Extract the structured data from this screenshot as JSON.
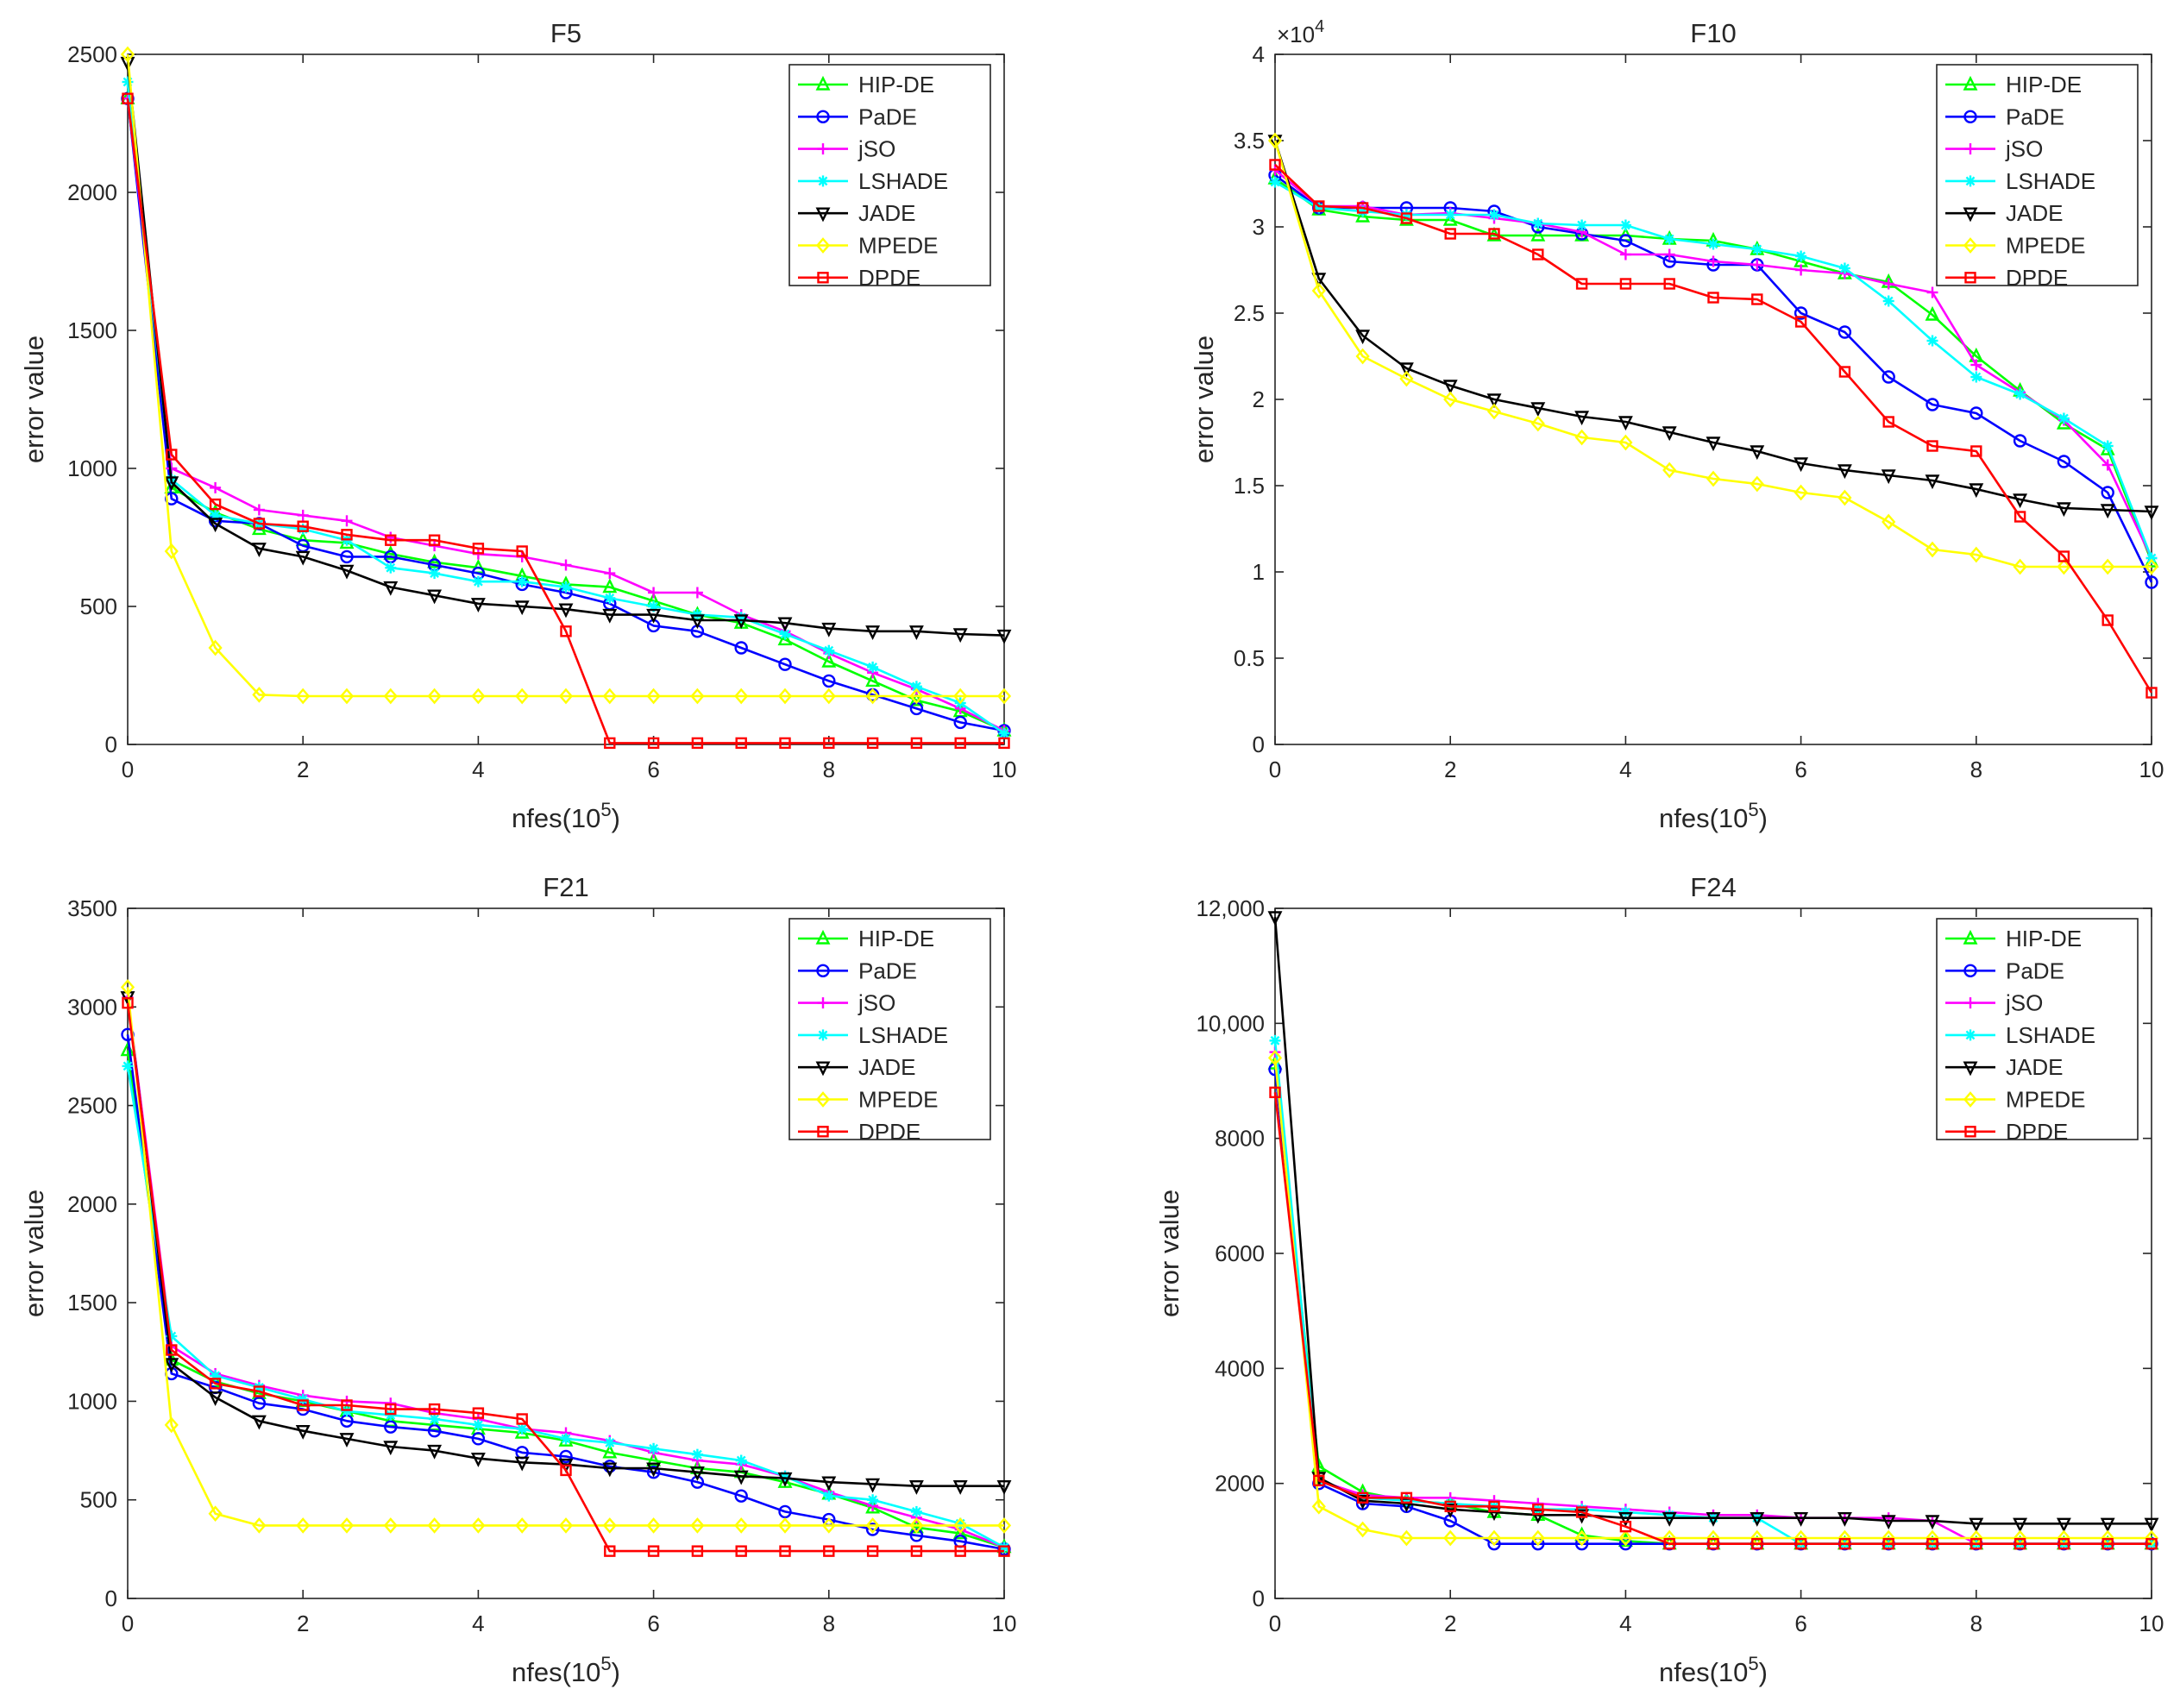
{
  "chart_data": [
    {
      "type": "line",
      "title": "F5",
      "xlabel": "nfes(10",
      "xlabel_exp": "5",
      "xlabel_end": ")",
      "ylabel": "error value",
      "xlim": [
        0,
        10
      ],
      "ylim": [
        0,
        2500
      ],
      "xticks": [
        0,
        2,
        4,
        6,
        8,
        10
      ],
      "yticks": [
        0,
        500,
        1000,
        1500,
        2000,
        2500
      ],
      "ytick_labels": [
        "0",
        "500",
        "1000",
        "1500",
        "2000",
        "2500"
      ],
      "y_multiplier": "",
      "legend_position": "top-right",
      "x": [
        0,
        0.5,
        1,
        1.5,
        2,
        2.5,
        3,
        3.5,
        4,
        4.5,
        5,
        5.5,
        6,
        6.5,
        7,
        7.5,
        8,
        8.5,
        9,
        9.5,
        10
      ],
      "series": [
        {
          "name": "HIP-DE",
          "color": "#00ff00",
          "marker": "triangle-up",
          "values": [
            2340,
            930,
            840,
            780,
            740,
            730,
            690,
            660,
            640,
            610,
            580,
            570,
            520,
            470,
            440,
            380,
            300,
            230,
            160,
            120,
            50
          ]
        },
        {
          "name": "PaDE",
          "color": "#0000ff",
          "marker": "circle",
          "values": [
            2340,
            890,
            810,
            800,
            720,
            680,
            680,
            650,
            620,
            580,
            550,
            510,
            430,
            410,
            350,
            290,
            230,
            180,
            130,
            80,
            50
          ]
        },
        {
          "name": "jSO",
          "color": "#ff00ff",
          "marker": "plus",
          "values": [
            2340,
            1000,
            930,
            850,
            830,
            810,
            750,
            720,
            690,
            680,
            650,
            620,
            550,
            550,
            470,
            410,
            330,
            260,
            200,
            130,
            50
          ]
        },
        {
          "name": "LSHADE",
          "color": "#00ffff",
          "marker": "asterisk",
          "values": [
            2400,
            960,
            830,
            800,
            780,
            740,
            640,
            620,
            590,
            590,
            570,
            530,
            500,
            470,
            460,
            400,
            340,
            280,
            210,
            150,
            40
          ]
        },
        {
          "name": "JADE",
          "color": "#000000",
          "marker": "triangle-down",
          "values": [
            2470,
            950,
            800,
            710,
            680,
            630,
            570,
            540,
            510,
            500,
            490,
            470,
            470,
            450,
            450,
            440,
            420,
            410,
            410,
            400,
            395
          ]
        },
        {
          "name": "MPEDE",
          "color": "#ffff00",
          "marker": "diamond",
          "values": [
            2500,
            700,
            350,
            180,
            175,
            175,
            175,
            175,
            175,
            175,
            175,
            175,
            175,
            175,
            175,
            175,
            175,
            175,
            175,
            175,
            175
          ]
        },
        {
          "name": "DPDE",
          "color": "#ff0000",
          "marker": "square",
          "values": [
            2340,
            1050,
            870,
            800,
            790,
            760,
            740,
            740,
            710,
            700,
            410,
            5,
            5,
            5,
            5,
            5,
            5,
            5,
            5,
            5,
            5
          ]
        }
      ]
    },
    {
      "type": "line",
      "title": "F10",
      "xlabel": "nfes(10",
      "xlabel_exp": "5",
      "xlabel_end": ")",
      "ylabel": "error value",
      "xlim": [
        0,
        10
      ],
      "ylim": [
        0,
        40000
      ],
      "xticks": [
        0,
        2,
        4,
        6,
        8,
        10
      ],
      "yticks": [
        0,
        5000,
        10000,
        15000,
        20000,
        25000,
        30000,
        35000,
        40000
      ],
      "ytick_labels": [
        "0",
        "0.5",
        "1",
        "1.5",
        "2",
        "2.5",
        "3",
        "3.5",
        "4"
      ],
      "y_multiplier": "×10",
      "y_multiplier_exp": "4",
      "legend_position": "top-right",
      "x": [
        0,
        0.5,
        1,
        1.5,
        2,
        2.5,
        3,
        3.5,
        4,
        4.5,
        5,
        5.5,
        6,
        6.5,
        7,
        7.5,
        8,
        8.5,
        9,
        9.5,
        10
      ],
      "series": [
        {
          "name": "HIP-DE",
          "color": "#00ff00",
          "marker": "triangle-up",
          "values": [
            32800,
            31000,
            30600,
            30400,
            30400,
            29500,
            29500,
            29500,
            29500,
            29300,
            29200,
            28700,
            28000,
            27300,
            26800,
            24900,
            22500,
            20500,
            18600,
            17100,
            10600
          ]
        },
        {
          "name": "PaDE",
          "color": "#0000ff",
          "marker": "circle",
          "values": [
            33000,
            31100,
            31100,
            31100,
            31100,
            30900,
            30000,
            29600,
            29200,
            28000,
            27800,
            27800,
            25000,
            23900,
            21300,
            19700,
            19200,
            17600,
            16400,
            14600,
            9400
          ]
        },
        {
          "name": "jSO",
          "color": "#ff00ff",
          "marker": "plus",
          "values": [
            33300,
            31200,
            31200,
            30700,
            30800,
            30500,
            30200,
            29700,
            28400,
            28400,
            28000,
            27800,
            27500,
            27300,
            26700,
            26200,
            22000,
            20400,
            18800,
            16200,
            10800
          ]
        },
        {
          "name": "LSHADE",
          "color": "#00ffff",
          "marker": "asterisk",
          "values": [
            32600,
            31100,
            30900,
            30700,
            30700,
            30700,
            30200,
            30100,
            30100,
            29300,
            29000,
            28700,
            28300,
            27600,
            25700,
            23400,
            21300,
            20300,
            18900,
            17300,
            10800
          ]
        },
        {
          "name": "JADE",
          "color": "#000000",
          "marker": "triangle-down",
          "values": [
            35000,
            27000,
            23700,
            21800,
            20800,
            20000,
            19500,
            19000,
            18700,
            18100,
            17500,
            17000,
            16300,
            15900,
            15600,
            15300,
            14800,
            14200,
            13700,
            13600,
            13500
          ]
        },
        {
          "name": "MPEDE",
          "color": "#ffff00",
          "marker": "diamond",
          "values": [
            35000,
            26300,
            22500,
            21200,
            20000,
            19300,
            18600,
            17800,
            17500,
            15900,
            15400,
            15100,
            14600,
            14300,
            12900,
            11300,
            11000,
            10300,
            10300,
            10300,
            10300
          ]
        },
        {
          "name": "DPDE",
          "color": "#ff0000",
          "marker": "square",
          "values": [
            33600,
            31200,
            31100,
            30500,
            29600,
            29600,
            28400,
            26700,
            26700,
            26700,
            25900,
            25800,
            24500,
            21600,
            18700,
            17300,
            17000,
            13200,
            10900,
            7200,
            3000
          ]
        }
      ]
    },
    {
      "type": "line",
      "title": "F21",
      "xlabel": "nfes(10",
      "xlabel_exp": "5",
      "xlabel_end": ")",
      "ylabel": "error value",
      "xlim": [
        0,
        10
      ],
      "ylim": [
        0,
        3500
      ],
      "xticks": [
        0,
        2,
        4,
        6,
        8,
        10
      ],
      "yticks": [
        0,
        500,
        1000,
        1500,
        2000,
        2500,
        3000,
        3500
      ],
      "ytick_labels": [
        "0",
        "500",
        "1000",
        "1500",
        "2000",
        "2500",
        "3000",
        "3500"
      ],
      "y_multiplier": "",
      "legend_position": "top-right",
      "x": [
        0,
        0.5,
        1,
        1.5,
        2,
        2.5,
        3,
        3.5,
        4,
        4.5,
        5,
        5.5,
        6,
        6.5,
        7,
        7.5,
        8,
        8.5,
        9,
        9.5,
        10
      ],
      "series": [
        {
          "name": "HIP-DE",
          "color": "#00ff00",
          "marker": "triangle-up",
          "values": [
            2780,
            1210,
            1100,
            1040,
            1000,
            950,
            900,
            880,
            860,
            840,
            800,
            740,
            700,
            660,
            640,
            590,
            530,
            460,
            360,
            330,
            260
          ]
        },
        {
          "name": "PaDE",
          "color": "#0000ff",
          "marker": "circle",
          "values": [
            2860,
            1140,
            1070,
            990,
            960,
            900,
            870,
            850,
            810,
            740,
            720,
            670,
            640,
            590,
            520,
            440,
            400,
            350,
            320,
            290,
            250
          ]
        },
        {
          "name": "jSO",
          "color": "#ff00ff",
          "marker": "plus",
          "values": [
            3050,
            1280,
            1140,
            1080,
            1030,
            1000,
            990,
            940,
            910,
            860,
            840,
            800,
            740,
            700,
            680,
            620,
            540,
            470,
            410,
            350,
            260
          ]
        },
        {
          "name": "LSHADE",
          "color": "#00ffff",
          "marker": "asterisk",
          "values": [
            2700,
            1330,
            1130,
            1070,
            1010,
            950,
            930,
            910,
            880,
            860,
            810,
            790,
            760,
            730,
            700,
            620,
            520,
            500,
            440,
            380,
            260
          ]
        },
        {
          "name": "JADE",
          "color": "#000000",
          "marker": "triangle-down",
          "values": [
            3050,
            1190,
            1020,
            900,
            850,
            810,
            770,
            750,
            710,
            690,
            680,
            660,
            660,
            640,
            620,
            610,
            590,
            580,
            570,
            570,
            570
          ]
        },
        {
          "name": "MPEDE",
          "color": "#ffff00",
          "marker": "diamond",
          "values": [
            3100,
            880,
            430,
            370,
            370,
            370,
            370,
            370,
            370,
            370,
            370,
            370,
            370,
            370,
            370,
            370,
            370,
            370,
            370,
            370,
            370
          ]
        },
        {
          "name": "DPDE",
          "color": "#ff0000",
          "marker": "square",
          "values": [
            3020,
            1260,
            1090,
            1050,
            980,
            980,
            960,
            960,
            940,
            910,
            650,
            240,
            240,
            240,
            240,
            240,
            240,
            240,
            240,
            240,
            240
          ]
        }
      ]
    },
    {
      "type": "line",
      "title": "F24",
      "xlabel": "nfes(10",
      "xlabel_exp": "5",
      "xlabel_end": ")",
      "ylabel": "error value",
      "xlim": [
        0,
        10
      ],
      "ylim": [
        0,
        12000
      ],
      "xticks": [
        0,
        2,
        4,
        6,
        8,
        10
      ],
      "yticks": [
        0,
        2000,
        4000,
        6000,
        8000,
        10000,
        12000
      ],
      "ytick_labels": [
        "0",
        "2000",
        "4000",
        "6000",
        "8000",
        "10,000",
        "12,000"
      ],
      "y_multiplier": "",
      "legend_position": "top-right",
      "x": [
        0,
        0.5,
        1,
        1.5,
        2,
        2.5,
        3,
        3.5,
        4,
        4.5,
        5,
        5.5,
        6,
        6.5,
        7,
        7.5,
        8,
        8.5,
        9,
        9.5,
        10
      ],
      "series": [
        {
          "name": "HIP-DE",
          "color": "#00ff00",
          "marker": "triangle-up",
          "values": [
            9300,
            2300,
            1850,
            1700,
            1650,
            1500,
            1450,
            1100,
            1000,
            950,
            950,
            950,
            950,
            950,
            950,
            950,
            950,
            950,
            950,
            950,
            950
          ]
        },
        {
          "name": "PaDE",
          "color": "#0000ff",
          "marker": "circle",
          "values": [
            9200,
            2000,
            1650,
            1600,
            1350,
            950,
            950,
            950,
            950,
            950,
            950,
            950,
            950,
            950,
            950,
            950,
            950,
            950,
            950,
            950,
            950
          ]
        },
        {
          "name": "jSO",
          "color": "#ff00ff",
          "marker": "plus",
          "values": [
            9500,
            2050,
            1800,
            1750,
            1750,
            1700,
            1650,
            1600,
            1550,
            1500,
            1450,
            1450,
            1400,
            1400,
            1400,
            1350,
            950,
            950,
            950,
            950,
            950
          ]
        },
        {
          "name": "LSHADE",
          "color": "#00ffff",
          "marker": "asterisk",
          "values": [
            9700,
            2050,
            1750,
            1700,
            1650,
            1600,
            1550,
            1550,
            1500,
            1450,
            1400,
            1400,
            950,
            950,
            950,
            950,
            950,
            950,
            950,
            950,
            950
          ]
        },
        {
          "name": "JADE",
          "color": "#000000",
          "marker": "triangle-down",
          "values": [
            11850,
            2100,
            1700,
            1650,
            1550,
            1500,
            1450,
            1450,
            1400,
            1400,
            1400,
            1400,
            1400,
            1400,
            1350,
            1350,
            1300,
            1300,
            1300,
            1300,
            1300
          ]
        },
        {
          "name": "MPEDE",
          "color": "#ffff00",
          "marker": "diamond",
          "values": [
            9400,
            1600,
            1200,
            1050,
            1050,
            1050,
            1050,
            1050,
            1050,
            1050,
            1050,
            1050,
            1050,
            1050,
            1050,
            1050,
            1050,
            1050,
            1050,
            1050,
            1050
          ]
        },
        {
          "name": "DPDE",
          "color": "#ff0000",
          "marker": "square",
          "values": [
            8800,
            2050,
            1750,
            1750,
            1600,
            1600,
            1550,
            1500,
            1250,
            950,
            950,
            950,
            950,
            950,
            950,
            950,
            950,
            950,
            950,
            950,
            950
          ]
        }
      ]
    }
  ]
}
